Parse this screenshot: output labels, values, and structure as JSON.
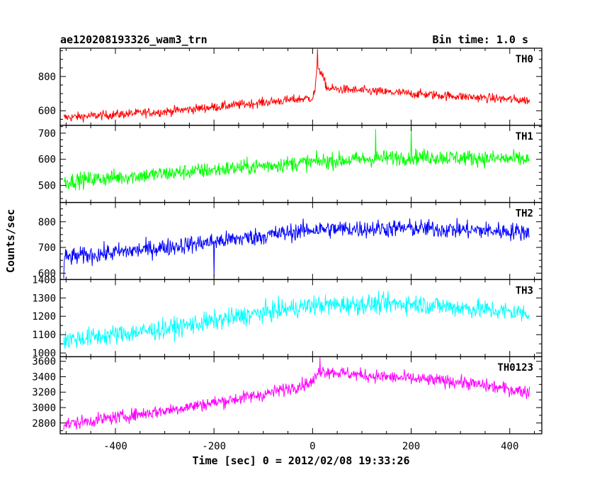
{
  "header": {
    "title": "ae120208193326_wam3_trn",
    "bin_time": "Bin time: 1.0 s"
  },
  "ylabel": "Counts/sec",
  "xlabel": "Time [sec] 0 = 2012/02/08 19:33:26",
  "chart_data": {
    "type": "line",
    "title": "ae120208193326_wam3_trn",
    "xlabel": "Time [sec] 0 = 2012/02/08 19:33:26",
    "ylabel": "Counts/sec",
    "xlim": [
      -512,
      465
    ],
    "x_ticks": [
      -400,
      -200,
      0,
      200,
      400
    ],
    "bin_time_s": 1.0,
    "panels": [
      {
        "name": "TH0",
        "color": "#ff0000",
        "ylim": [
          515,
          965
        ],
        "y_ticks": [
          600,
          800
        ],
        "trend": [
          [
            -505,
            560
          ],
          [
            -300,
            595
          ],
          [
            0,
            675
          ],
          [
            5,
            720
          ],
          [
            10,
            870
          ],
          [
            30,
            730
          ],
          [
            200,
            700
          ],
          [
            440,
            660
          ]
        ],
        "noise_amplitude": 35,
        "spikes": [
          {
            "x": 10,
            "y": 960
          }
        ]
      },
      {
        "name": "TH1",
        "color": "#00ff00",
        "ylim": [
          435,
          730
        ],
        "y_ticks": [
          500,
          600,
          700
        ],
        "trend": [
          [
            -505,
            515
          ],
          [
            -300,
            545
          ],
          [
            0,
            590
          ],
          [
            200,
            610
          ],
          [
            440,
            600
          ]
        ],
        "noise_amplitude": 40,
        "spikes": [
          {
            "x": 128,
            "y": 715
          },
          {
            "x": 200,
            "y": 720
          }
        ]
      },
      {
        "name": "TH2",
        "color": "#0000ff",
        "ylim": [
          575,
          875
        ],
        "y_ticks": [
          600,
          700,
          800
        ],
        "trend": [
          [
            -505,
            660
          ],
          [
            -300,
            700
          ],
          [
            -100,
            745
          ],
          [
            0,
            770
          ],
          [
            200,
            775
          ],
          [
            440,
            760
          ]
        ],
        "noise_amplitude": 45,
        "spikes": [
          {
            "x": -505,
            "y": 580
          },
          {
            "x": -200,
            "y": 585
          }
        ]
      },
      {
        "name": "TH3",
        "color": "#00ffff",
        "ylim": [
          980,
          1400
        ],
        "y_ticks": [
          1000,
          1100,
          1200,
          1300,
          1400
        ],
        "trend": [
          [
            -505,
            1070
          ],
          [
            -300,
            1130
          ],
          [
            -100,
            1220
          ],
          [
            0,
            1260
          ],
          [
            200,
            1270
          ],
          [
            440,
            1215
          ]
        ],
        "noise_amplitude": 70,
        "spikes": []
      },
      {
        "name": "TH0123",
        "color": "#ff00ff",
        "ylim": [
          2660,
          3660
        ],
        "y_ticks": [
          2800,
          3000,
          3200,
          3400,
          3600
        ],
        "trend": [
          [
            -505,
            2780
          ],
          [
            -300,
            2960
          ],
          [
            -100,
            3170
          ],
          [
            0,
            3330
          ],
          [
            15,
            3480
          ],
          [
            100,
            3420
          ],
          [
            300,
            3330
          ],
          [
            440,
            3200
          ]
        ],
        "noise_amplitude": 110,
        "spikes": [
          {
            "x": 15,
            "y": 3650
          }
        ]
      }
    ]
  }
}
